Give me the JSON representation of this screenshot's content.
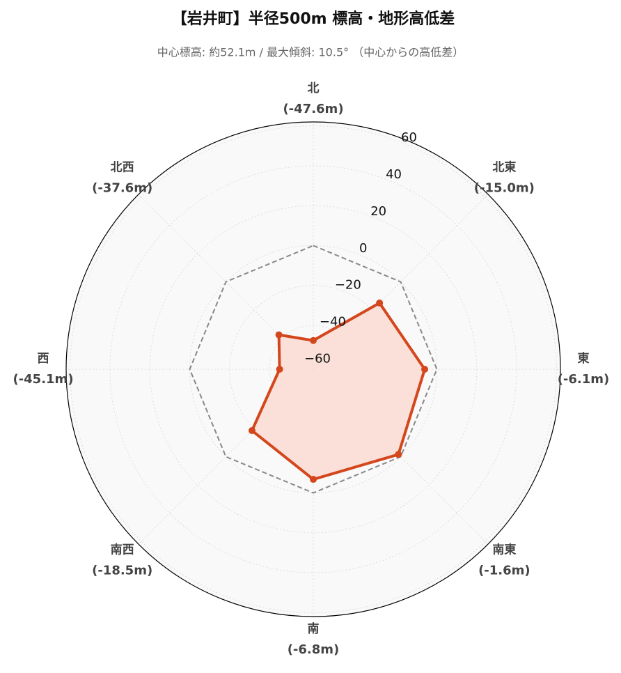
{
  "chart_data": {
    "type": "radar",
    "title": "【岩井町】半径500m 標高・地形高低差",
    "subtitle": "中心標高: 約52.1m / 最大傾斜: 10.5° （中心からの高低差）",
    "categories": [
      "北",
      "北東",
      "東",
      "南東",
      "南",
      "南西",
      "西",
      "北西"
    ],
    "values": [
      -47.6,
      -15.0,
      -6.1,
      -1.6,
      -6.8,
      -18.5,
      -45.1,
      -37.6
    ],
    "value_labels": [
      "(-47.6m)",
      "(-15.0m)",
      "(-6.1m)",
      "(-1.6m)",
      "(-6.8m)",
      "(-18.5m)",
      "(-45.1m)",
      "(-37.6m)"
    ],
    "color": "#d4471c",
    "fill_color": "#fcdcd4",
    "reference_line": 0,
    "ylim": [
      -62,
      62
    ],
    "yticks": [
      {
        "value": -60,
        "label": "−60"
      },
      {
        "value": -40,
        "label": "−40"
      },
      {
        "value": -20,
        "label": "−20"
      },
      0,
      20,
      40,
      60
    ],
    "grid": true
  }
}
